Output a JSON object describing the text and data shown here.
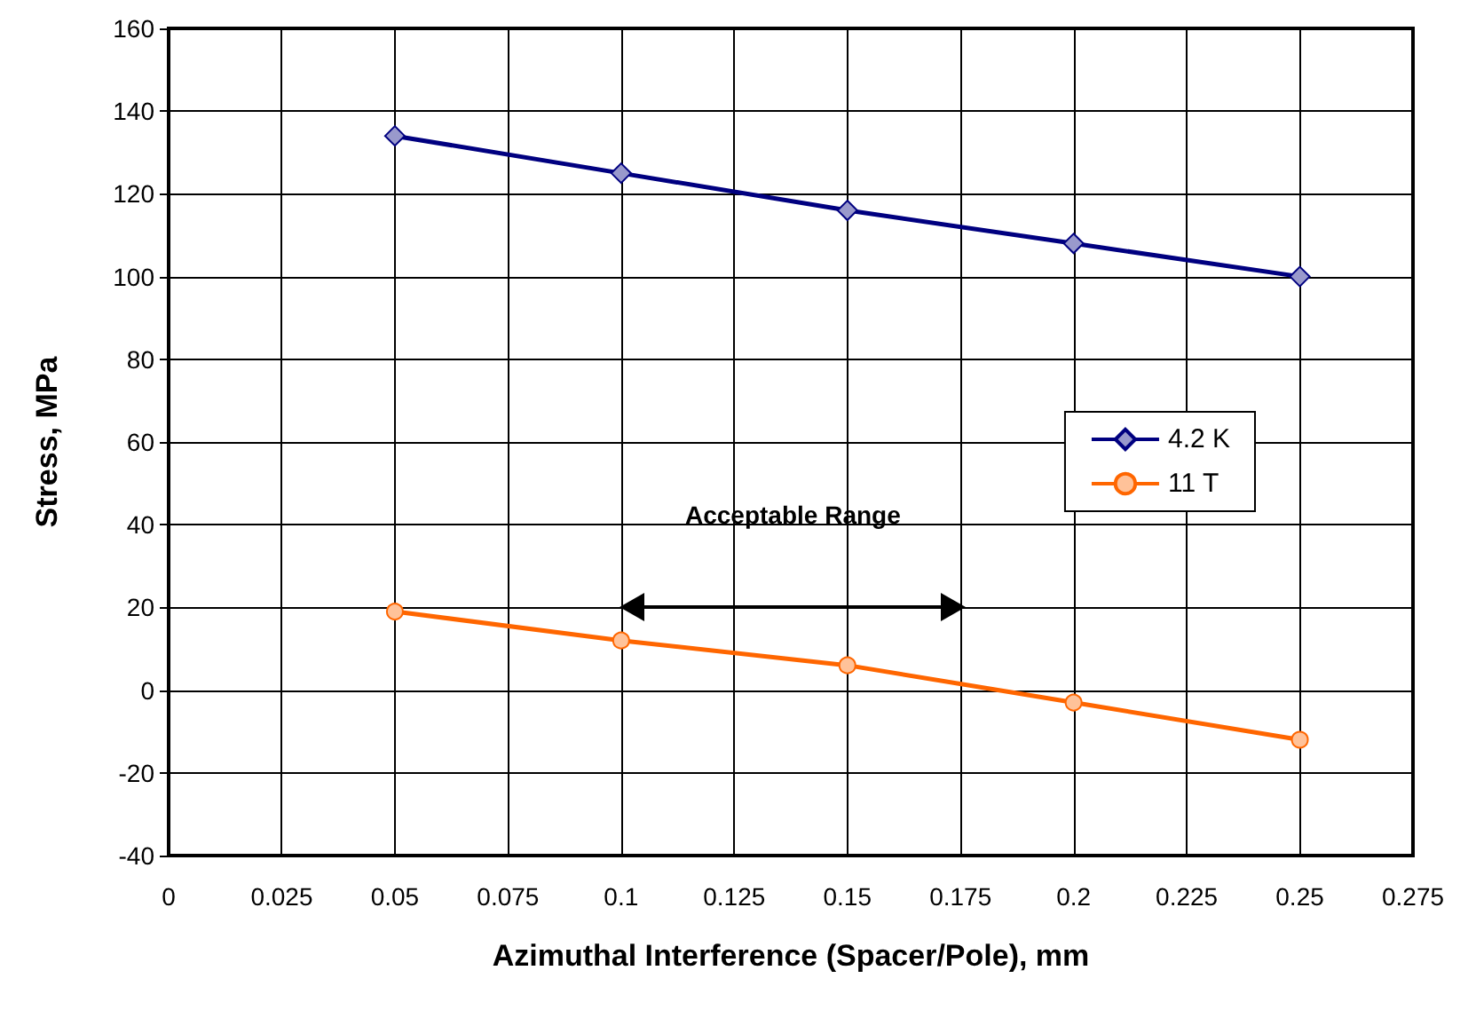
{
  "chart_data": {
    "type": "line",
    "xlabel": "Azimuthal Interference (Spacer/Pole), mm",
    "ylabel": "Stress, MPa",
    "x": [
      0.05,
      0.1,
      0.15,
      0.2,
      0.25
    ],
    "series": [
      {
        "name": "4.2 K",
        "color": "#000080",
        "marker": "diamond",
        "values": [
          134,
          125,
          116,
          108,
          100
        ]
      },
      {
        "name": "11 T",
        "color": "#ff6600",
        "marker": "circle",
        "values": [
          19,
          12,
          6,
          -3,
          -12
        ]
      }
    ],
    "xlim": [
      0,
      0.275
    ],
    "xticks": [
      0,
      0.025,
      0.05,
      0.075,
      0.1,
      0.125,
      0.15,
      0.175,
      0.2,
      0.225,
      0.25,
      0.275
    ],
    "ylim": [
      -40,
      160
    ],
    "yticks": [
      -40,
      -20,
      0,
      20,
      40,
      60,
      80,
      100,
      120,
      140,
      160
    ],
    "grid": true,
    "legend": "right",
    "line_style": "solid",
    "annotations": [
      "Acceptable Range"
    ]
  }
}
